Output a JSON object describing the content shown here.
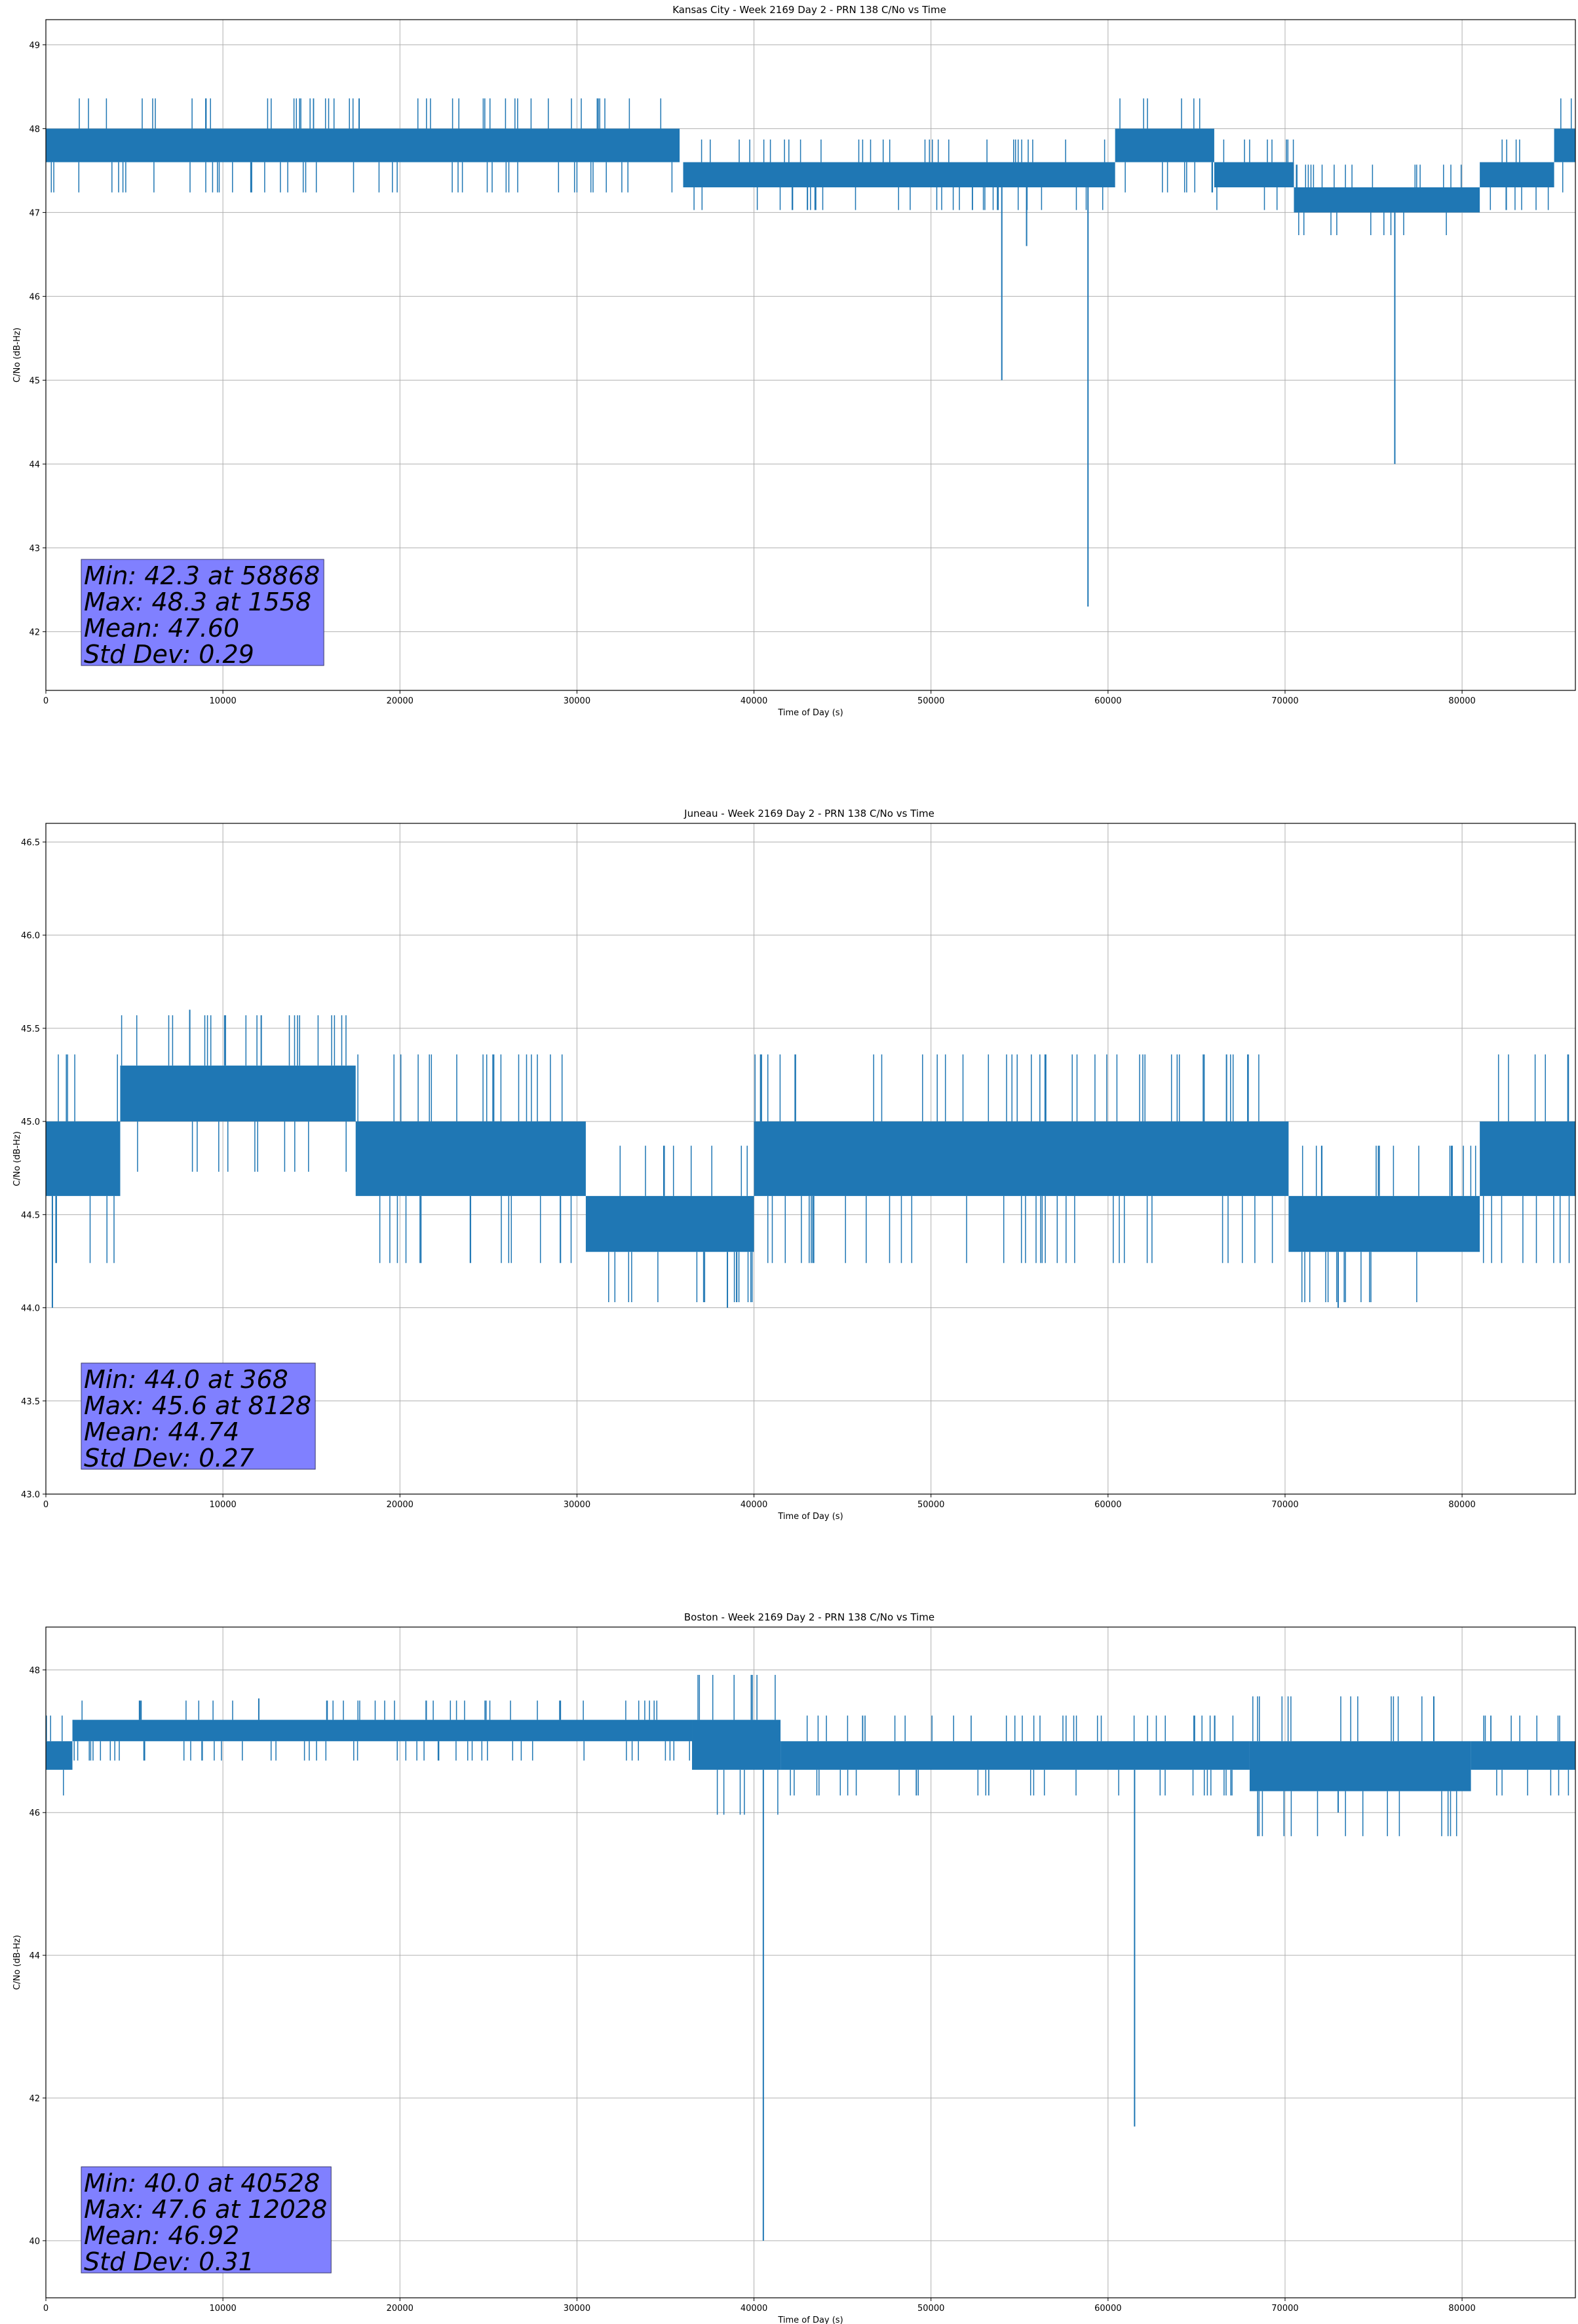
{
  "chart_data": [
    {
      "type": "line",
      "title": "Kansas City - Week 2169 Day 2 - PRN 138 C/No vs Time",
      "xlabel": "Time of Day (s)",
      "ylabel": "C/No (dB-Hz)",
      "xlim": [
        0,
        86400
      ],
      "ylim": [
        41.3,
        49.3
      ],
      "xticks": [
        0,
        10000,
        20000,
        30000,
        40000,
        50000,
        60000,
        70000,
        80000
      ],
      "yticks": [
        42,
        43,
        44,
        45,
        46,
        47,
        48,
        49
      ],
      "ytick_labels": [
        "42",
        "43",
        "44",
        "45",
        "46",
        "47",
        "48",
        "49"
      ],
      "grid": true,
      "color": "#1f77b4",
      "segments": [
        {
          "x": [
            0,
            21600
          ],
          "low": 47.6,
          "high": 48.0
        },
        {
          "x": [
            21600,
            35800
          ],
          "low": 47.6,
          "high": 48.0
        },
        {
          "x": [
            36000,
            60400
          ],
          "low": 47.3,
          "high": 47.6
        },
        {
          "x": [
            60400,
            66000
          ],
          "low": 47.6,
          "high": 48.0
        },
        {
          "x": [
            66000,
            70500
          ],
          "low": 47.3,
          "high": 47.6
        },
        {
          "x": [
            70500,
            81000
          ],
          "low": 47.0,
          "high": 47.3
        },
        {
          "x": [
            81000,
            85200
          ],
          "low": 47.3,
          "high": 47.6
        },
        {
          "x": [
            85200,
            86400
          ],
          "low": 47.6,
          "high": 48.0
        }
      ],
      "spikes": [
        {
          "x": 54000,
          "y": 45.0
        },
        {
          "x": 55400,
          "y": 46.6
        },
        {
          "x": 58868,
          "y": 42.3
        },
        {
          "x": 76200,
          "y": 44.0
        }
      ],
      "stats": {
        "min": "Min: 42.3 at 58868",
        "max": "Max: 48.3 at 1558",
        "mean": "Mean: 47.60",
        "std": "Std Dev: 0.29"
      }
    },
    {
      "type": "line",
      "title": "Juneau - Week 2169 Day 2 - PRN 138 C/No vs Time",
      "xlabel": "Time of Day (s)",
      "ylabel": "C/No (dB-Hz)",
      "xlim": [
        0,
        86400
      ],
      "ylim": [
        43.0,
        46.6
      ],
      "xticks": [
        0,
        10000,
        20000,
        30000,
        40000,
        50000,
        60000,
        70000,
        80000
      ],
      "yticks": [
        43.0,
        43.5,
        44.0,
        44.5,
        45.0,
        45.5,
        46.0,
        46.5
      ],
      "ytick_labels": [
        "43.0",
        "43.5",
        "44.0",
        "44.5",
        "45.0",
        "45.5",
        "46.0",
        "46.5"
      ],
      "grid": true,
      "color": "#1f77b4",
      "segments": [
        {
          "x": [
            0,
            4200
          ],
          "low": 44.6,
          "high": 45.0
        },
        {
          "x": [
            4200,
            17500
          ],
          "low": 45.0,
          "high": 45.3
        },
        {
          "x": [
            17500,
            30500
          ],
          "low": 44.6,
          "high": 45.0
        },
        {
          "x": [
            30500,
            40000
          ],
          "low": 44.3,
          "high": 44.6
        },
        {
          "x": [
            40000,
            70200
          ],
          "low": 44.6,
          "high": 45.0
        },
        {
          "x": [
            70200,
            81000
          ],
          "low": 44.3,
          "high": 44.6
        },
        {
          "x": [
            81000,
            86400
          ],
          "low": 44.6,
          "high": 45.0
        }
      ],
      "spikes": [
        {
          "x": 368,
          "y": 44.0
        },
        {
          "x": 8128,
          "y": 45.6
        },
        {
          "x": 38500,
          "y": 44.0
        },
        {
          "x": 73000,
          "y": 44.0
        }
      ],
      "stats": {
        "min": "Min: 44.0 at 368",
        "max": "Max: 45.6 at 8128",
        "mean": "Mean: 44.74",
        "std": "Std Dev: 0.27"
      }
    },
    {
      "type": "line",
      "title": "Boston - Week 2169 Day 2 - PRN 138 C/No vs Time",
      "xlabel": "Time of Day (s)",
      "ylabel": "C/No (dB-Hz)",
      "xlim": [
        0,
        86400
      ],
      "ylim": [
        39.2,
        48.6
      ],
      "xticks": [
        0,
        10000,
        20000,
        30000,
        40000,
        50000,
        60000,
        70000,
        80000
      ],
      "yticks": [
        40,
        42,
        44,
        46,
        48
      ],
      "ytick_labels": [
        "40",
        "42",
        "44",
        "46",
        "48"
      ],
      "grid": true,
      "color": "#1f77b4",
      "segments": [
        {
          "x": [
            0,
            1500
          ],
          "low": 46.6,
          "high": 47.0
        },
        {
          "x": [
            1500,
            36500
          ],
          "low": 47.0,
          "high": 47.3
        },
        {
          "x": [
            36500,
            41500
          ],
          "low": 46.6,
          "high": 47.3
        },
        {
          "x": [
            41500,
            68000
          ],
          "low": 46.6,
          "high": 47.0
        },
        {
          "x": [
            68000,
            80500
          ],
          "low": 46.3,
          "high": 47.0
        },
        {
          "x": [
            80500,
            86400
          ],
          "low": 46.6,
          "high": 47.0
        }
      ],
      "spikes": [
        {
          "x": 40528,
          "y": 40.0
        },
        {
          "x": 61500,
          "y": 41.6
        },
        {
          "x": 12028,
          "y": 47.6
        },
        {
          "x": 73000,
          "y": 46.0
        }
      ],
      "stats": {
        "min": "Min: 40.0 at 40528",
        "max": "Max: 47.6 at 12028",
        "mean": "Mean: 46.92",
        "std": "Std Dev: 0.31"
      }
    }
  ]
}
